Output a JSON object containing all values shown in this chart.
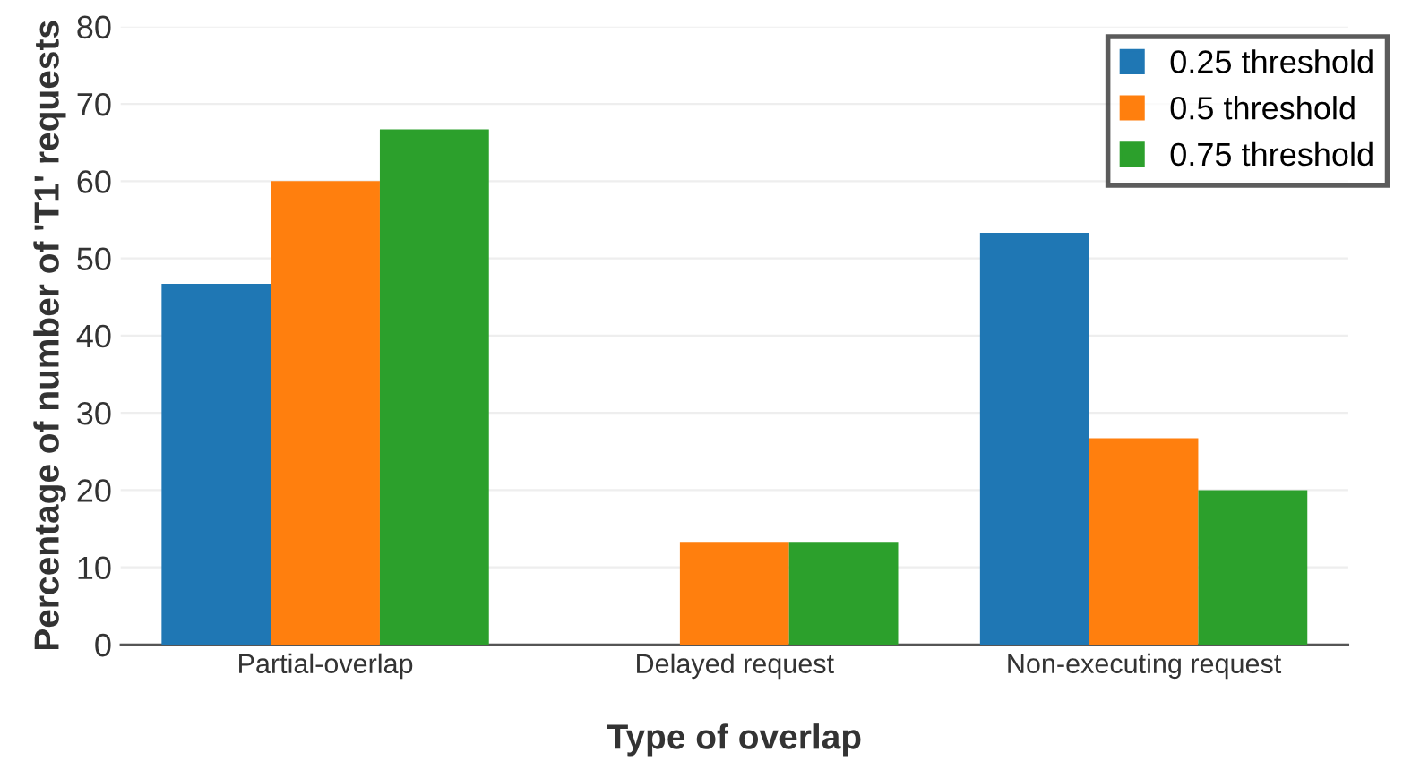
{
  "chart_data": {
    "type": "bar",
    "xlabel": "Type of overlap",
    "ylabel": "Percentage of number of 'T1' requests",
    "categories": [
      "Partial-overlap",
      "Delayed request",
      "Non-executing request"
    ],
    "series": [
      {
        "name": "0.25 threshold",
        "color": "#1f77b4",
        "values": [
          46.7,
          0,
          53.3
        ]
      },
      {
        "name": "0.5 threshold",
        "color": "#ff7f0e",
        "values": [
          60,
          13.3,
          26.7
        ]
      },
      {
        "name": "0.75 threshold",
        "color": "#2ca02c",
        "values": [
          66.7,
          13.3,
          20
        ]
      }
    ],
    "ylim": [
      0,
      80
    ],
    "yticks": [
      0,
      10,
      20,
      30,
      40,
      50,
      60,
      70,
      80
    ],
    "grid": "y",
    "legend": "top right"
  }
}
